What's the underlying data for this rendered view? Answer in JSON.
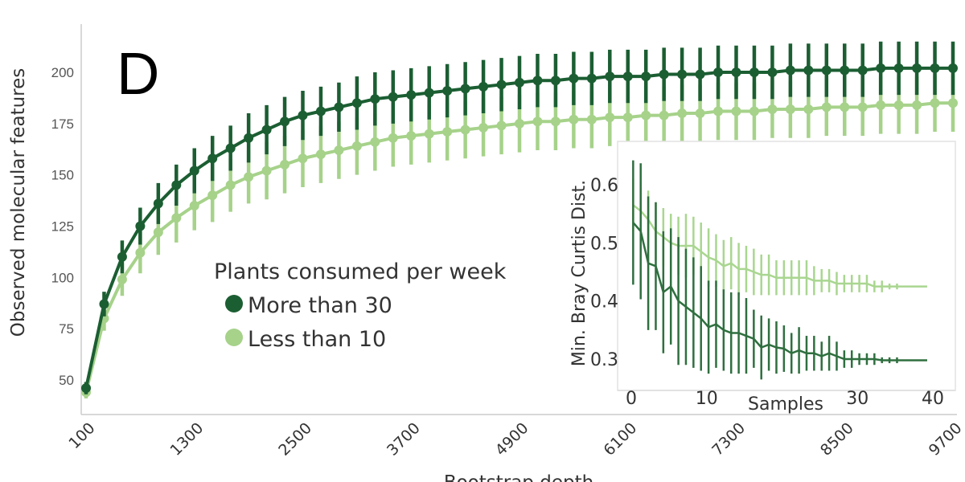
{
  "chart_data": [
    {
      "type": "line",
      "panel_label": "D",
      "xlabel": "Bootstrap depth",
      "ylabel": "Observed molecular features",
      "xticks": [
        100,
        1300,
        2500,
        3700,
        4900,
        6100,
        7300,
        8500,
        9700
      ],
      "yticks": [
        50,
        75,
        100,
        125,
        150,
        175,
        200
      ],
      "xlim": [
        100,
        9700
      ],
      "ylim": [
        38,
        222
      ],
      "grid": false,
      "error_bars": true,
      "legend": {
        "title": "Plants consumed per week",
        "placement": "center-left"
      },
      "x": [
        100,
        300,
        500,
        700,
        900,
        1100,
        1300,
        1500,
        1700,
        1900,
        2100,
        2300,
        2500,
        2700,
        2900,
        3100,
        3300,
        3500,
        3700,
        3900,
        4100,
        4300,
        4500,
        4700,
        4900,
        5100,
        5300,
        5500,
        5700,
        5900,
        6100,
        6300,
        6500,
        6700,
        6900,
        7100,
        7300,
        7500,
        7700,
        7900,
        8100,
        8300,
        8500,
        8700,
        8900,
        9100,
        9300,
        9500,
        9700
      ],
      "series": [
        {
          "name": "More than 30",
          "color": "#1b5e32",
          "values": [
            46,
            87,
            110,
            125,
            136,
            145,
            152,
            158,
            163,
            168,
            172,
            176,
            179,
            181,
            183,
            185,
            187,
            188,
            189,
            190,
            191,
            192,
            193,
            194,
            195,
            196,
            196,
            197,
            197,
            198,
            198,
            198,
            199,
            199,
            199,
            200,
            200,
            200,
            200,
            201,
            201,
            201,
            201,
            201,
            202,
            202,
            202,
            202,
            202
          ],
          "error": [
            3,
            6,
            8,
            9,
            10,
            10,
            11,
            11,
            11,
            12,
            12,
            12,
            12,
            12,
            12,
            13,
            13,
            13,
            13,
            13,
            13,
            13,
            13,
            13,
            13,
            13,
            13,
            13,
            13,
            13,
            13,
            13,
            13,
            13,
            13,
            13,
            13,
            13,
            13,
            13,
            13,
            13,
            13,
            13,
            13,
            13,
            13,
            13,
            13
          ]
        },
        {
          "name": "Less than 10",
          "color": "#a6d28a",
          "values": [
            44,
            80,
            99,
            112,
            122,
            129,
            135,
            140,
            145,
            149,
            152,
            155,
            158,
            160,
            162,
            164,
            166,
            168,
            169,
            170,
            171,
            172,
            173,
            174,
            175,
            176,
            176,
            177,
            177,
            178,
            178,
            179,
            179,
            180,
            180,
            181,
            181,
            181,
            182,
            182,
            182,
            183,
            183,
            183,
            184,
            184,
            184,
            185,
            185
          ],
          "error": [
            3,
            6,
            8,
            10,
            11,
            12,
            12,
            13,
            13,
            13,
            14,
            14,
            14,
            14,
            14,
            14,
            14,
            14,
            14,
            14,
            14,
            14,
            14,
            14,
            14,
            14,
            14,
            14,
            14,
            14,
            14,
            14,
            14,
            14,
            14,
            14,
            14,
            14,
            14,
            14,
            14,
            14,
            14,
            14,
            14,
            14,
            14,
            14,
            14
          ]
        }
      ]
    },
    {
      "type": "line",
      "inset": true,
      "xlabel": "Samples",
      "ylabel": "Min. Bray Curtis Dist.",
      "xticks": [
        0,
        10,
        30,
        40
      ],
      "yticks": [
        0.3,
        0.4,
        0.5,
        0.6
      ],
      "xlim": [
        0,
        40
      ],
      "ylim": [
        0.27,
        0.66
      ],
      "error_bars": true,
      "x": [
        1,
        2,
        3,
        4,
        5,
        6,
        7,
        8,
        9,
        10,
        11,
        12,
        13,
        14,
        15,
        16,
        17,
        18,
        19,
        20,
        21,
        22,
        23,
        24,
        25,
        26,
        27,
        28,
        29,
        30,
        31,
        32,
        33,
        34,
        35,
        36,
        37,
        38,
        39,
        40
      ],
      "series": [
        {
          "color": "#2f6f3f",
          "values": [
            0.535,
            0.52,
            0.465,
            0.46,
            0.415,
            0.425,
            0.4,
            0.39,
            0.38,
            0.37,
            0.355,
            0.36,
            0.35,
            0.345,
            0.345,
            0.34,
            0.335,
            0.32,
            0.325,
            0.32,
            0.318,
            0.31,
            0.315,
            0.31,
            0.31,
            0.305,
            0.31,
            0.305,
            0.3,
            0.3,
            0.3,
            0.3,
            0.3,
            0.298,
            0.298,
            0.298,
            0.298,
            0.298,
            0.298,
            0.298
          ],
          "error": [
            0.107,
            0.117,
            0.115,
            0.11,
            0.105,
            0.1,
            0.11,
            0.1,
            0.095,
            0.09,
            0.08,
            0.075,
            0.07,
            0.07,
            0.07,
            0.065,
            0.05,
            0.055,
            0.045,
            0.045,
            0.04,
            0.035,
            0.04,
            0.03,
            0.03,
            0.025,
            0.03,
            0.025,
            0.015,
            0.015,
            0.01,
            0.01,
            0.01,
            0.005,
            0.005,
            0.005,
            0,
            0,
            0,
            0
          ]
        },
        {
          "color": "#a9d690",
          "values": [
            0.565,
            0.555,
            0.54,
            0.52,
            0.51,
            0.5,
            0.495,
            0.495,
            0.495,
            0.485,
            0.475,
            0.47,
            0.46,
            0.465,
            0.455,
            0.455,
            0.45,
            0.445,
            0.445,
            0.44,
            0.44,
            0.44,
            0.44,
            0.44,
            0.435,
            0.435,
            0.435,
            0.43,
            0.43,
            0.43,
            0.43,
            0.43,
            0.425,
            0.425,
            0.425,
            0.425,
            0.425,
            0.425,
            0.425,
            0.425
          ],
          "error": [
            0.045,
            0.05,
            0.05,
            0.05,
            0.05,
            0.05,
            0.05,
            0.055,
            0.05,
            0.05,
            0.05,
            0.045,
            0.045,
            0.045,
            0.045,
            0.04,
            0.04,
            0.035,
            0.035,
            0.03,
            0.03,
            0.03,
            0.03,
            0.03,
            0.025,
            0.02,
            0.02,
            0.02,
            0.015,
            0.015,
            0.015,
            0.015,
            0.01,
            0.01,
            0.005,
            0.005,
            0,
            0,
            0,
            0
          ]
        }
      ]
    }
  ]
}
